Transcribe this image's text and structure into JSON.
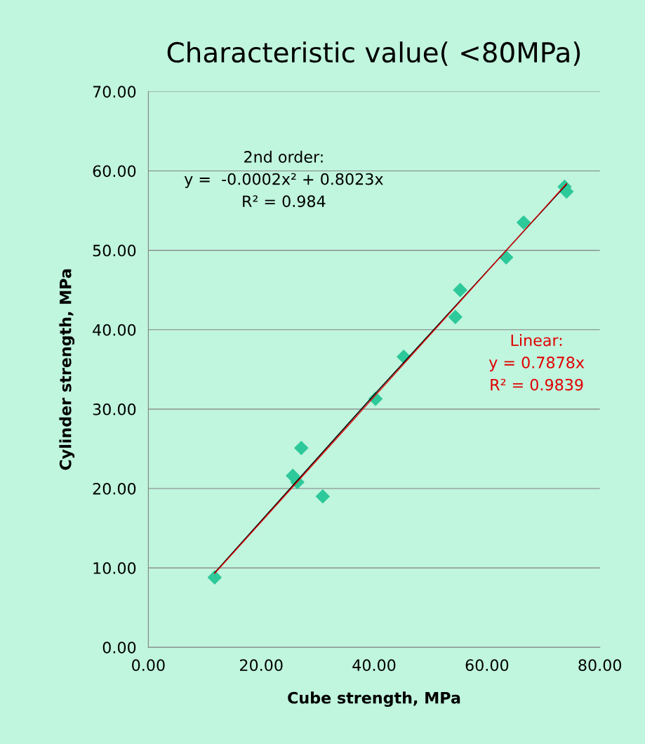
{
  "chart_data": {
    "type": "scatter",
    "title": "Characteristic value( <80MPa)",
    "xlabel": "Cube strength, MPa",
    "ylabel": "Cylinder strength, MPa",
    "series": [
      {
        "color": "#2ec99a",
        "marker": "diamond",
        "x": [
          11.75,
          25.6,
          26.4,
          27.1,
          30.9,
          40.25,
          45.25,
          54.4,
          55.25,
          63.4,
          66.5,
          73.75,
          74.1
        ],
        "values": [
          8.8,
          21.6,
          20.8,
          25.1,
          19.0,
          31.3,
          36.6,
          41.6,
          45.0,
          49.1,
          53.5,
          58.0,
          57.4
        ]
      },
      {
        "type": "line",
        "color": "#000000",
        "x": [
          11.75,
          40.0,
          74.1
        ],
        "values": [
          9.4,
          31.8,
          58.3
        ]
      },
      {
        "type": "line",
        "color": "#e00000",
        "x": [
          11.75,
          74.1
        ],
        "values": [
          9.3,
          58.4
        ]
      }
    ],
    "annotations": [
      "2nd order:\ny =  -0.0002x² + 0.8023x\nR² = 0.984",
      "Linear:\ny = 0.7878x\nR² = 0.9839"
    ],
    "xlim": [
      0,
      80
    ],
    "xticks": [
      {
        "value": 0,
        "label": "0.00"
      },
      {
        "value": 20,
        "label": "20.00"
      },
      {
        "value": 40,
        "label": "40.00"
      },
      {
        "value": 60,
        "label": "60.00"
      },
      {
        "value": 80,
        "label": "80.00"
      }
    ],
    "ylim": [
      0,
      70
    ],
    "yticks": [
      {
        "value": 0,
        "label": "0.00"
      },
      {
        "value": 10,
        "label": "10.00"
      },
      {
        "value": 20,
        "label": "20.00"
      },
      {
        "value": 30,
        "label": "30.00"
      },
      {
        "value": 40,
        "label": "40.00"
      },
      {
        "value": 50,
        "label": "50.00"
      },
      {
        "value": 60,
        "label": "60.00"
      },
      {
        "value": 70,
        "label": "70.00"
      }
    ],
    "grid": "y"
  }
}
